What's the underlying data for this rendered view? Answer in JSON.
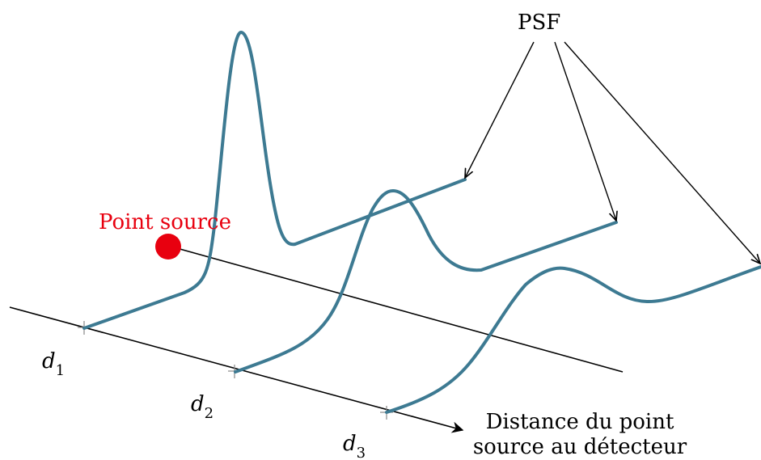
{
  "labels": {
    "psf": "PSF",
    "point_source": "Point source",
    "d1": "d",
    "d1_sub": "1",
    "d2": "d",
    "d2_sub": "2",
    "d3": "d",
    "d3_sub": "3",
    "axis_line1": "Distance du point",
    "axis_line2": "source au détecteur"
  },
  "colors": {
    "curve": "#3d7a92",
    "point_source": "#e8000f",
    "axis": "#000000"
  }
}
